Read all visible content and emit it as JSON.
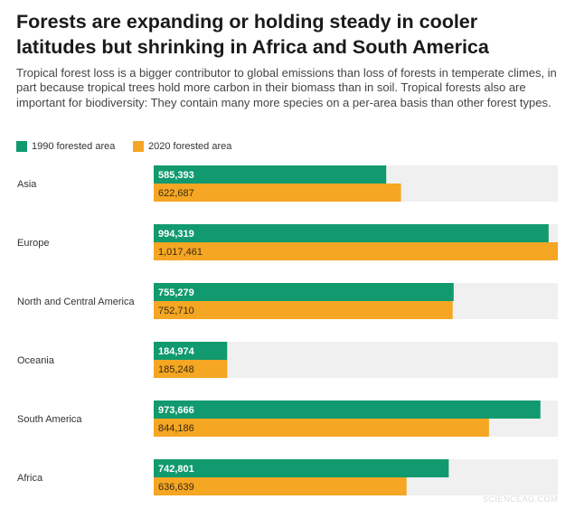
{
  "title": "Forests are expanding or holding steady in cooler latitudes but shrinking in Africa and South America",
  "subtitle": "Tropical forest loss is a bigger contributor to global emissions than loss of forests in temperate climes, in part because tropical trees hold more carbon in their biomass than in soil. Tropical forests also are important for biodiversity: They contain many more species on a per-area basis than other forest types.",
  "legend": [
    {
      "label": "1990 forested area",
      "color": "#119a6e"
    },
    {
      "label": "2020 forested area",
      "color": "#f5a623"
    }
  ],
  "watermark": "SCIENCEAG.COM",
  "chart_data": {
    "type": "bar",
    "orientation": "horizontal",
    "xlim": [
      0,
      1017461
    ],
    "categories": [
      "Asia",
      "Europe",
      "North and Central America",
      "Oceania",
      "South America",
      "Africa"
    ],
    "series": [
      {
        "name": "1990 forested area",
        "color": "#119a6e",
        "values": [
          585393,
          994319,
          755279,
          184974,
          973666,
          742801
        ],
        "labels": [
          "585,393",
          "994,319",
          "755,279",
          "184,974",
          "973,666",
          "742,801"
        ]
      },
      {
        "name": "2020 forested area",
        "color": "#f5a623",
        "values": [
          622687,
          1017461,
          752710,
          185248,
          844186,
          636639
        ],
        "labels": [
          "622,687",
          "1,017,461",
          "752,710",
          "185,248",
          "844,186",
          "636,639"
        ]
      }
    ],
    "track_color": "#f0f0f0"
  }
}
